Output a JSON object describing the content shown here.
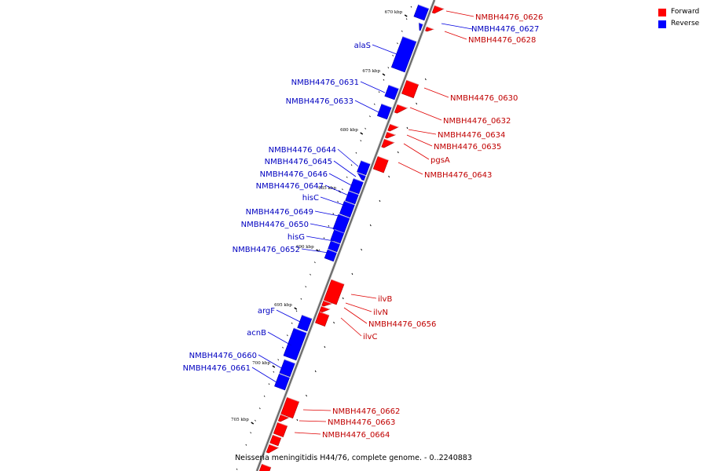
{
  "legend": {
    "forward": {
      "label": "Forward",
      "color": "#ff0000"
    },
    "reverse": {
      "label": "Reverse",
      "color": "#0000ff"
    }
  },
  "caption": "Neisseria meningitidis H44/76, complete genome. - 0..2240883",
  "ticks": [
    "670 kbp",
    "675 kbp",
    "680 kbp",
    "685 kbp",
    "690 kbp",
    "695 kbp",
    "700 kbp",
    "705 kbp"
  ],
  "genes": {
    "forward": [
      "NMBH4476_0626",
      "NMBH4476_0628",
      "NMBH4476_0630",
      "NMBH4476_0632",
      "NMBH4476_0634",
      "NMBH4476_0635",
      "pgsA",
      "NMBH4476_0643",
      "ilvB",
      "ilvN",
      "NMBH4476_0656",
      "ilvC",
      "NMBH4476_0662",
      "NMBH4476_0663",
      "NMBH4476_0664"
    ],
    "reverse": [
      "NMBH4476_0627",
      "alaS",
      "NMBH4476_0631",
      "NMBH4476_0633",
      "NMBH4476_0644",
      "NMBH4476_0645",
      "NMBH4476_0646",
      "NMBH4476_0647",
      "hisC",
      "NMBH4476_0649",
      "NMBH4476_0650",
      "hisG",
      "NMBH4476_0652",
      "argF",
      "acnB",
      "NMBH4476_0660",
      "NMBH4476_0661"
    ]
  }
}
